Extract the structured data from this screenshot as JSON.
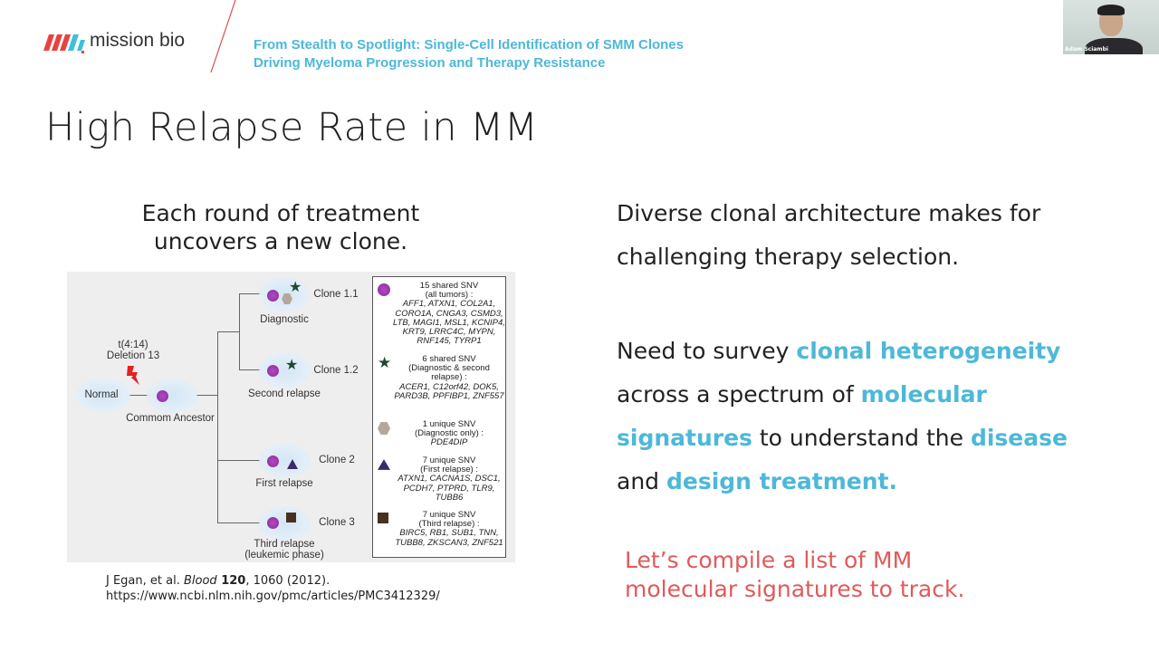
{
  "header": {
    "logo_text": "mission bio",
    "subtitle_line1": "From Stealth to Spotlight: Single-Cell Identification of SMM Clones",
    "subtitle_line2": "Driving Myeloma Progression  and Therapy Resistance"
  },
  "webcam": {
    "participant_name": "Adam Sciambi"
  },
  "slide": {
    "title": "High Relapse Rate in MM",
    "left_caption_line1": "Each round of treatment",
    "left_caption_line2": "uncovers a new clone.",
    "figure": {
      "mutation_line1": "t(4:14)",
      "mutation_line2": "Deletion 13",
      "normal": "Normal",
      "ancestor": "Commom Ancestor",
      "clones": [
        {
          "name": "Clone 1.1",
          "stage": "Diagnostic"
        },
        {
          "name": "Clone 1.2",
          "stage": "Second relapse"
        },
        {
          "name": "Clone 2",
          "stage": "First relapse"
        },
        {
          "name": "Clone 3",
          "stage": "Third relapse",
          "stage2": "(leukemic phase)"
        }
      ],
      "legend": [
        {
          "symbol": "purple-circle",
          "title": "15 shared SNV",
          "sub": "(all tumors) :",
          "genes": "AFF1, ATXN1, COL2A1, CORO1A, CNGA3, CSMD3, LTB, MAGI1, MSL1, KCNIP4, KRT9, LRRC4C, MYPN, RNF145, TYRP1"
        },
        {
          "symbol": "green-star",
          "title": "6 shared SNV",
          "sub": "(Diagnostic & second relapse) :",
          "genes": "ACER1, C12orf42, DOK5, PARD3B, PPFIBP1, ZNF557"
        },
        {
          "symbol": "gray-hexagon",
          "title": "1 unique SNV",
          "sub": "(Diagnostic only) :",
          "genes": "PDE4DIP"
        },
        {
          "symbol": "purple-triangle",
          "title": "7 unique SNV",
          "sub": "(First relapse) :",
          "genes": "ATXN1, CACNA1S, DSC1, PCDH7, PTPRD, TLR9, TUBB6"
        },
        {
          "symbol": "brown-square",
          "title": "7 unique SNV",
          "sub": "(Third relapse) :",
          "genes": "BIRC5, RB1, SUB1, TNN, TUBB8, ZKSCAN3, ZNF521"
        }
      ]
    },
    "citation": {
      "authors": "J Egan, et al. ",
      "journal": "Blood",
      "volume": " 120",
      "pages": ", 1060 (2012).",
      "url": "https://www.ncbi.nlm.nih.gov/pmc/articles/PMC3412329/"
    },
    "right": {
      "p1_line1": "Diverse clonal architecture makes for",
      "p1_line2": "challenging therapy selection.",
      "p2_a": "Need to survey ",
      "p2_b": "clonal heterogeneity",
      "p2_c": "across a spectrum of ",
      "p2_d": "molecular",
      "p2_e": "signatures",
      "p2_f": " to understand the ",
      "p2_g": "disease",
      "p2_h": "and ",
      "p2_i": "design treatment.",
      "p3_line1": "Let’s compile a list of MM",
      "p3_line2": "molecular signatures to track."
    }
  },
  "colors": {
    "accent_teal": "#4db8d8",
    "accent_red": "#e05a5a",
    "logo_red": "#e8423f",
    "logo_blue": "#3cc0e0"
  }
}
